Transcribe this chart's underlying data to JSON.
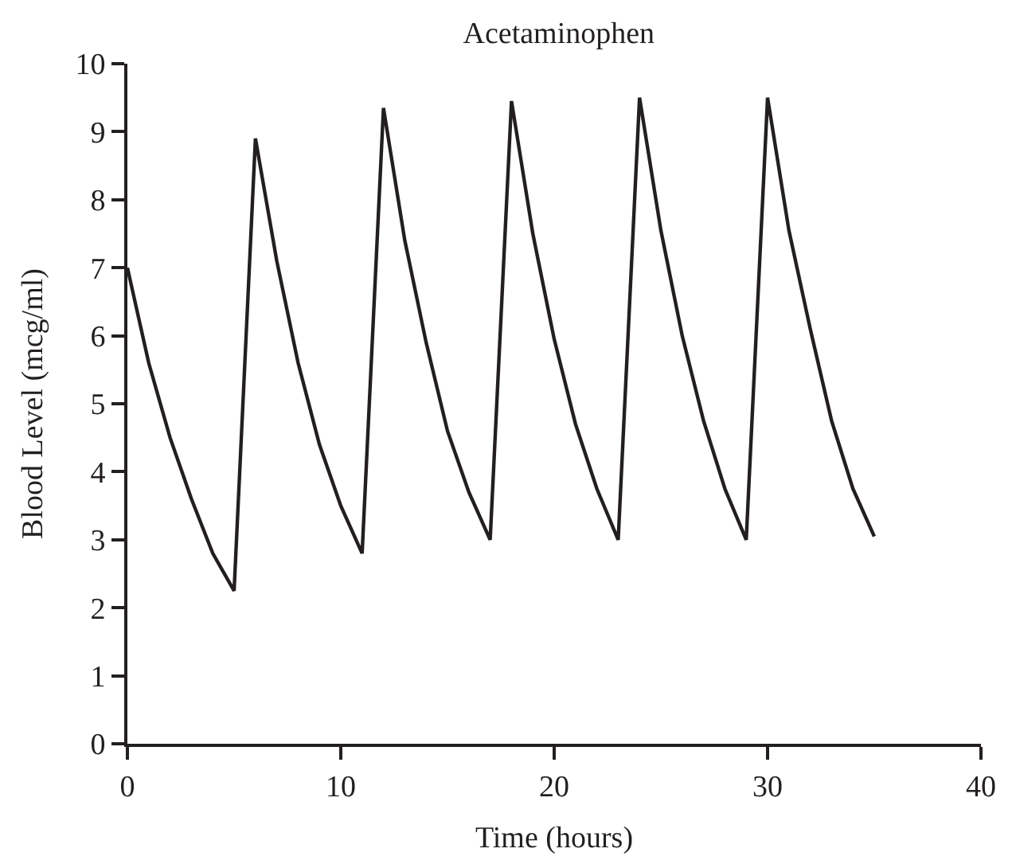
{
  "chart_data": {
    "type": "line",
    "title": "Acetaminophen",
    "xlabel": "Time (hours)",
    "ylabel": "Blood Level (mcg/ml)",
    "x": [
      0,
      1,
      2,
      3,
      4,
      5,
      6,
      7,
      8,
      9,
      10,
      11,
      12,
      13,
      14,
      15,
      16,
      17,
      18,
      19,
      20,
      21,
      22,
      23,
      24,
      25,
      26,
      27,
      28,
      29,
      30,
      31,
      32,
      33,
      34,
      35
    ],
    "series": [
      {
        "color": "#231f20",
        "values": [
          7.0,
          5.6,
          4.5,
          3.6,
          2.8,
          2.25,
          8.9,
          7.1,
          5.6,
          4.4,
          3.5,
          2.8,
          9.35,
          7.4,
          5.9,
          4.6,
          3.7,
          3.0,
          9.45,
          7.5,
          5.95,
          4.7,
          3.75,
          3.0,
          9.5,
          7.55,
          6.0,
          4.75,
          3.75,
          3.0,
          9.5,
          7.55,
          6.1,
          4.75,
          3.75,
          3.05
        ]
      }
    ],
    "xlim": [
      0,
      40
    ],
    "xticks": [
      0,
      10,
      20,
      30,
      40
    ],
    "ylim": [
      0,
      10
    ],
    "yticks": [
      0,
      1,
      2,
      3,
      4,
      5,
      6,
      7,
      8,
      9,
      10
    ],
    "marker": "none",
    "line_style": "solid"
  }
}
